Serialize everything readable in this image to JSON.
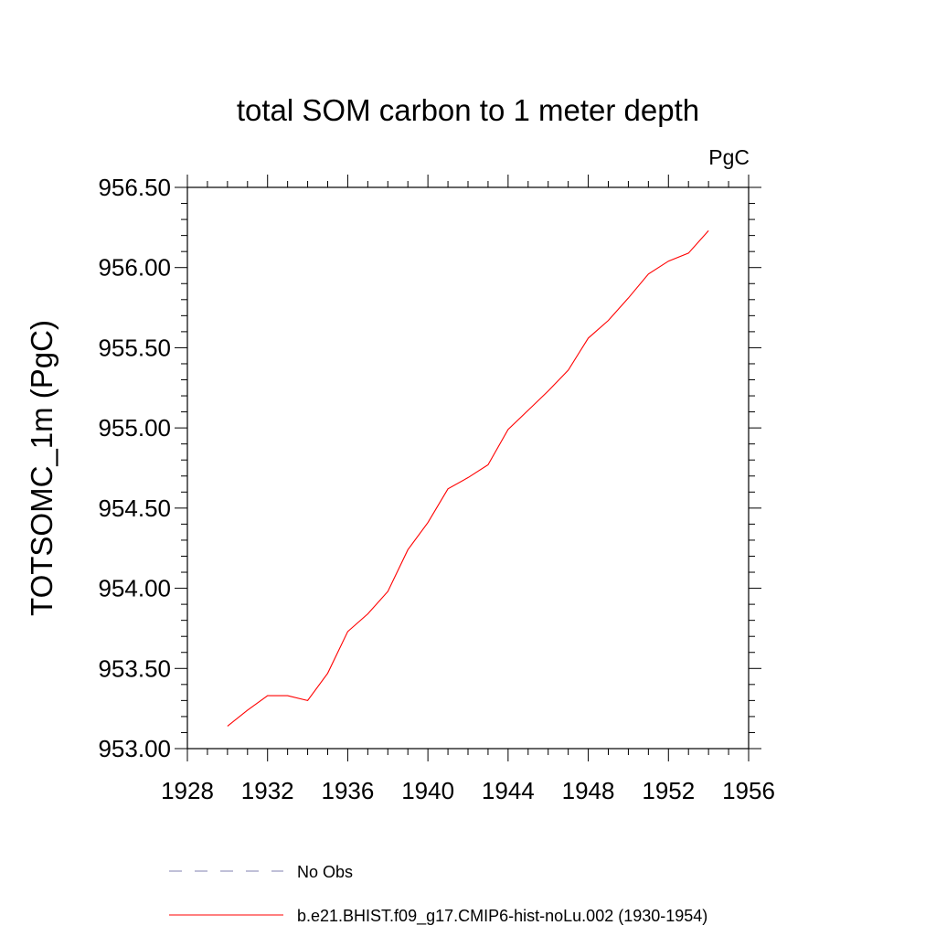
{
  "chart_data": {
    "type": "line",
    "title": "total SOM carbon to 1 meter depth",
    "units_label": "PgC",
    "ylabel": "TOTSOMC_1m  (PgC)",
    "xlabel": "",
    "xlim": [
      1928,
      1956
    ],
    "ylim": [
      953.0,
      956.5
    ],
    "x_ticks": [
      "1928",
      "1932",
      "1936",
      "1940",
      "1944",
      "1948",
      "1952",
      "1956"
    ],
    "y_ticks": [
      "953.00",
      "953.50",
      "954.00",
      "954.50",
      "955.00",
      "955.50",
      "956.00",
      "956.50"
    ],
    "series": [
      {
        "name": "b.e21.BHIST.f09_g17.CMIP6-hist-noLu.002 (1930-1954)",
        "color": "#ff0000",
        "style": "solid",
        "x": [
          1930,
          1931,
          1932,
          1933,
          1934,
          1935,
          1936,
          1937,
          1938,
          1939,
          1940,
          1941,
          1942,
          1943,
          1944,
          1945,
          1946,
          1947,
          1948,
          1949,
          1950,
          1951,
          1952,
          1953,
          1954
        ],
        "y": [
          953.14,
          953.24,
          953.33,
          953.33,
          953.3,
          953.47,
          953.73,
          953.84,
          953.98,
          954.24,
          954.41,
          954.62,
          954.69,
          954.77,
          954.99,
          955.11,
          955.23,
          955.36,
          955.56,
          955.67,
          955.81,
          955.96,
          956.04,
          956.09,
          956.23
        ]
      },
      {
        "name": "No Obs",
        "color": "#8080b0",
        "style": "dashed",
        "x": [],
        "y": []
      }
    ],
    "legend_position": "bottom",
    "grid": false
  }
}
